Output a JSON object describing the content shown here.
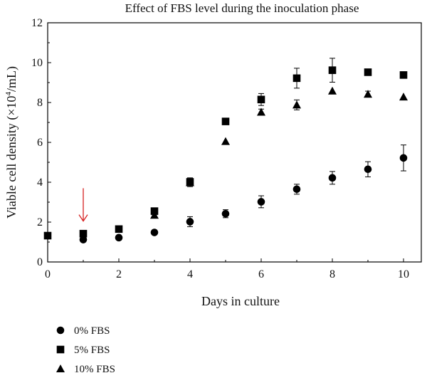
{
  "chart_data": {
    "type": "scatter",
    "title": "Effect of FBS level during the inoculation phase",
    "xlabel": "Days in culture",
    "ylabel_main": "Viable cell density (×10",
    "ylabel_sup": "4",
    "ylabel_tail": "/mL)",
    "xlim": [
      0,
      10.5
    ],
    "ylim": [
      0,
      12
    ],
    "xticks": [
      0,
      2,
      4,
      6,
      8,
      10
    ],
    "yticks": [
      0,
      2,
      4,
      6,
      8,
      10,
      12
    ],
    "grid": false,
    "legend_position": "bottom-left",
    "series": [
      {
        "name": "0% FBS",
        "marker": "circle",
        "points": [
          {
            "x": 1,
            "y": 1.12,
            "err": 0.0
          },
          {
            "x": 2,
            "y": 1.22,
            "err": 0.0
          },
          {
            "x": 3,
            "y": 1.48,
            "err": 0.0
          },
          {
            "x": 4,
            "y": 2.02,
            "err": 0.25
          },
          {
            "x": 5,
            "y": 2.42,
            "err": 0.2
          },
          {
            "x": 6,
            "y": 3.02,
            "err": 0.3
          },
          {
            "x": 7,
            "y": 3.65,
            "err": 0.25
          },
          {
            "x": 8,
            "y": 4.22,
            "err": 0.32
          },
          {
            "x": 9,
            "y": 4.65,
            "err": 0.38
          },
          {
            "x": 10,
            "y": 5.22,
            "err": 0.65
          }
        ]
      },
      {
        "name": "5% FBS",
        "marker": "square",
        "points": [
          {
            "x": 0,
            "y": 1.32,
            "err": 0.0
          },
          {
            "x": 1,
            "y": 1.42,
            "err": 0.0
          },
          {
            "x": 2,
            "y": 1.65,
            "err": 0.0
          },
          {
            "x": 3,
            "y": 2.55,
            "err": 0.0
          },
          {
            "x": 4,
            "y": 4.02,
            "err": 0.2
          },
          {
            "x": 5,
            "y": 7.05,
            "err": 0.15
          },
          {
            "x": 6,
            "y": 8.15,
            "err": 0.3
          },
          {
            "x": 7,
            "y": 9.22,
            "err": 0.5
          },
          {
            "x": 8,
            "y": 9.62,
            "err": 0.6
          },
          {
            "x": 9,
            "y": 9.52,
            "err": 0.0
          },
          {
            "x": 10,
            "y": 9.38,
            "err": 0.0
          }
        ]
      },
      {
        "name": "10% FBS",
        "marker": "triangle",
        "points": [
          {
            "x": 3,
            "y": 2.35,
            "err": 0.0
          },
          {
            "x": 4,
            "y": 3.98,
            "err": 0.2
          },
          {
            "x": 5,
            "y": 6.05,
            "err": 0.0
          },
          {
            "x": 6,
            "y": 7.52,
            "err": 0.15
          },
          {
            "x": 7,
            "y": 7.88,
            "err": 0.25
          },
          {
            "x": 8,
            "y": 8.58,
            "err": 0.0
          },
          {
            "x": 9,
            "y": 8.42,
            "err": 0.15
          },
          {
            "x": 10,
            "y": 8.28,
            "err": 0.0
          }
        ]
      }
    ],
    "annotations": [
      {
        "type": "arrow",
        "color": "#d62020",
        "x": 1,
        "y_top": 3.7,
        "y_bottom": 2.05
      }
    ]
  }
}
